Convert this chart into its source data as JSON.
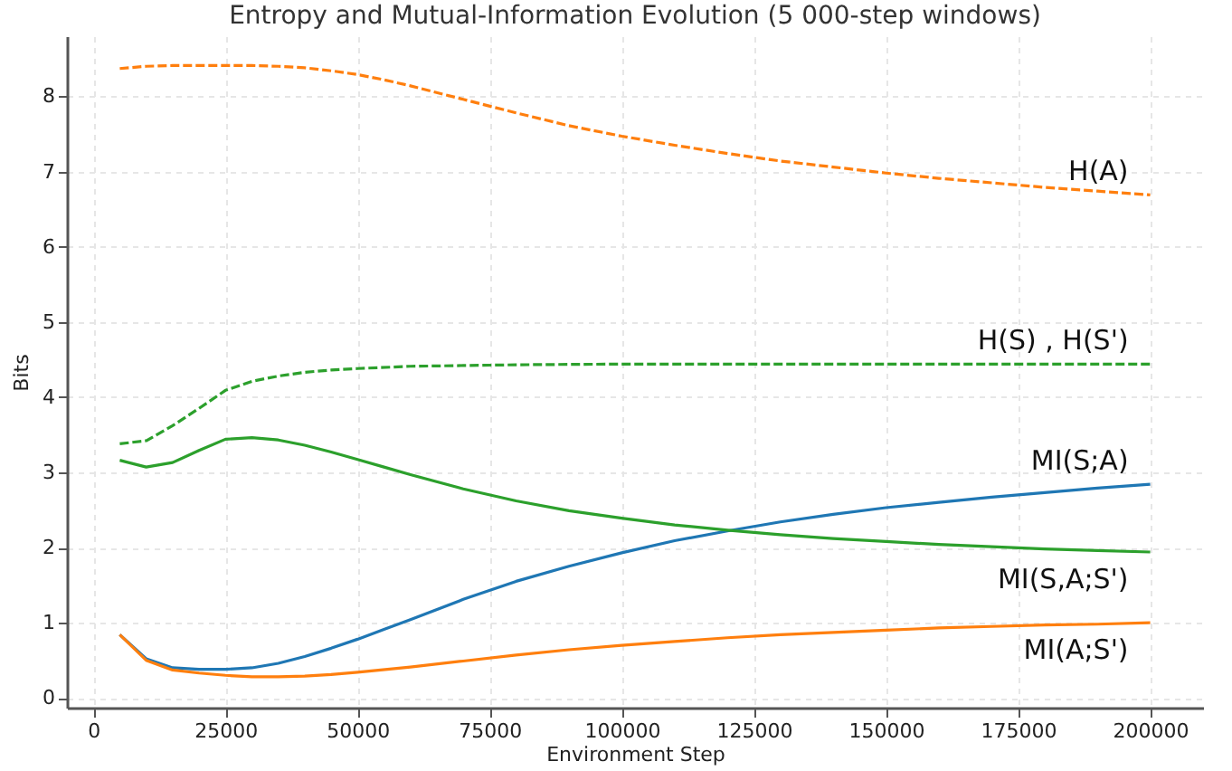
{
  "chart_data": {
    "type": "line",
    "title": "Entropy and Mutual-Information Evolution (5 000-step windows)",
    "xlabel": "Environment Step",
    "ylabel": "Bits",
    "xlim": [
      -5000,
      210000
    ],
    "xticks": [
      0,
      25000,
      50000,
      75000,
      100000,
      125000,
      150000,
      175000,
      200000
    ],
    "ylim": [
      -0.13,
      8.8
    ],
    "yticks": [
      0,
      1,
      2,
      3,
      4,
      5,
      6,
      7,
      8
    ],
    "grid": true,
    "legend": false,
    "marker": "none",
    "series": [
      {
        "name": "H(A)",
        "color": "#ff7f0e",
        "line_style": "dashed",
        "x": [
          5000,
          10000,
          15000,
          20000,
          25000,
          30000,
          35000,
          40000,
          45000,
          50000,
          55000,
          60000,
          70000,
          80000,
          90000,
          100000,
          110000,
          120000,
          130000,
          140000,
          150000,
          160000,
          170000,
          180000,
          190000,
          200000
        ],
        "values": [
          8.37,
          8.4,
          8.41,
          8.41,
          8.41,
          8.41,
          8.4,
          8.38,
          8.34,
          8.29,
          8.22,
          8.14,
          7.96,
          7.78,
          7.61,
          7.47,
          7.35,
          7.24,
          7.14,
          7.06,
          6.98,
          6.91,
          6.85,
          6.79,
          6.74,
          6.69
        ]
      },
      {
        "name": "H(S) , H(S')",
        "color": "#2ca02c",
        "line_style": "dashed",
        "x": [
          5000,
          10000,
          15000,
          20000,
          25000,
          30000,
          35000,
          40000,
          45000,
          50000,
          60000,
          70000,
          80000,
          100000,
          150000,
          200000
        ],
        "values": [
          3.38,
          3.42,
          3.62,
          3.85,
          4.09,
          4.21,
          4.28,
          4.33,
          4.36,
          4.38,
          4.41,
          4.42,
          4.43,
          4.44,
          4.44,
          4.44
        ]
      },
      {
        "name": "MI(S;A)",
        "color": "#1f77b4",
        "line_style": "solid",
        "x": [
          5000,
          10000,
          15000,
          20000,
          25000,
          30000,
          35000,
          40000,
          45000,
          50000,
          55000,
          60000,
          70000,
          80000,
          90000,
          100000,
          110000,
          120000,
          130000,
          140000,
          150000,
          160000,
          170000,
          180000,
          190000,
          200000
        ],
        "values": [
          0.84,
          0.52,
          0.4,
          0.38,
          0.38,
          0.4,
          0.46,
          0.55,
          0.66,
          0.78,
          0.91,
          1.04,
          1.31,
          1.55,
          1.75,
          1.93,
          2.09,
          2.22,
          2.34,
          2.44,
          2.53,
          2.6,
          2.67,
          2.73,
          2.79,
          2.84
        ]
      },
      {
        "name": "MI(S,A;S')",
        "color": "#2ca02c",
        "line_style": "solid",
        "x": [
          5000,
          10000,
          15000,
          20000,
          25000,
          30000,
          35000,
          40000,
          45000,
          50000,
          55000,
          60000,
          70000,
          80000,
          90000,
          100000,
          110000,
          120000,
          130000,
          140000,
          150000,
          160000,
          170000,
          180000,
          190000,
          200000
        ],
        "values": [
          3.16,
          3.07,
          3.13,
          3.29,
          3.44,
          3.46,
          3.43,
          3.36,
          3.27,
          3.17,
          3.07,
          2.97,
          2.78,
          2.62,
          2.49,
          2.39,
          2.3,
          2.23,
          2.17,
          2.12,
          2.08,
          2.04,
          2.01,
          1.98,
          1.96,
          1.94
        ]
      },
      {
        "name": "MI(A;S')",
        "color": "#ff7f0e",
        "line_style": "solid",
        "x": [
          5000,
          10000,
          15000,
          20000,
          25000,
          30000,
          35000,
          40000,
          45000,
          50000,
          60000,
          70000,
          80000,
          90000,
          100000,
          110000,
          120000,
          130000,
          140000,
          150000,
          160000,
          170000,
          180000,
          190000,
          200000
        ],
        "values": [
          0.84,
          0.5,
          0.37,
          0.33,
          0.3,
          0.28,
          0.28,
          0.29,
          0.31,
          0.34,
          0.41,
          0.49,
          0.57,
          0.64,
          0.7,
          0.75,
          0.8,
          0.84,
          0.87,
          0.9,
          0.93,
          0.95,
          0.97,
          0.98,
          1.0
        ]
      }
    ]
  }
}
